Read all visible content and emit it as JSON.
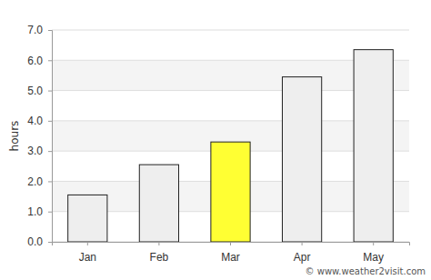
{
  "chart_data": {
    "type": "bar",
    "y_label": "hours",
    "annotation": "© www.weather2visit.com",
    "categories": [
      "Jan",
      "Feb",
      "Mar",
      "Apr",
      "May"
    ],
    "values": [
      1.55,
      2.55,
      3.3,
      5.45,
      6.35
    ],
    "colors": [
      "#eeeeee",
      "#eeeeee",
      "#ffff33",
      "#eeeeee",
      "#eeeeee"
    ],
    "ylim": [
      0,
      7
    ],
    "yticks": [
      {
        "value": 0,
        "label": "0.0"
      },
      {
        "value": 1,
        "label": "1.0"
      },
      {
        "value": 2,
        "label": "2.0"
      },
      {
        "value": 3,
        "label": "3.0"
      },
      {
        "value": 4,
        "label": "4.0"
      },
      {
        "value": 5,
        "label": "5.0"
      },
      {
        "value": 6,
        "label": "6.0"
      },
      {
        "value": 7,
        "label": "7.0"
      }
    ],
    "grid": true
  }
}
